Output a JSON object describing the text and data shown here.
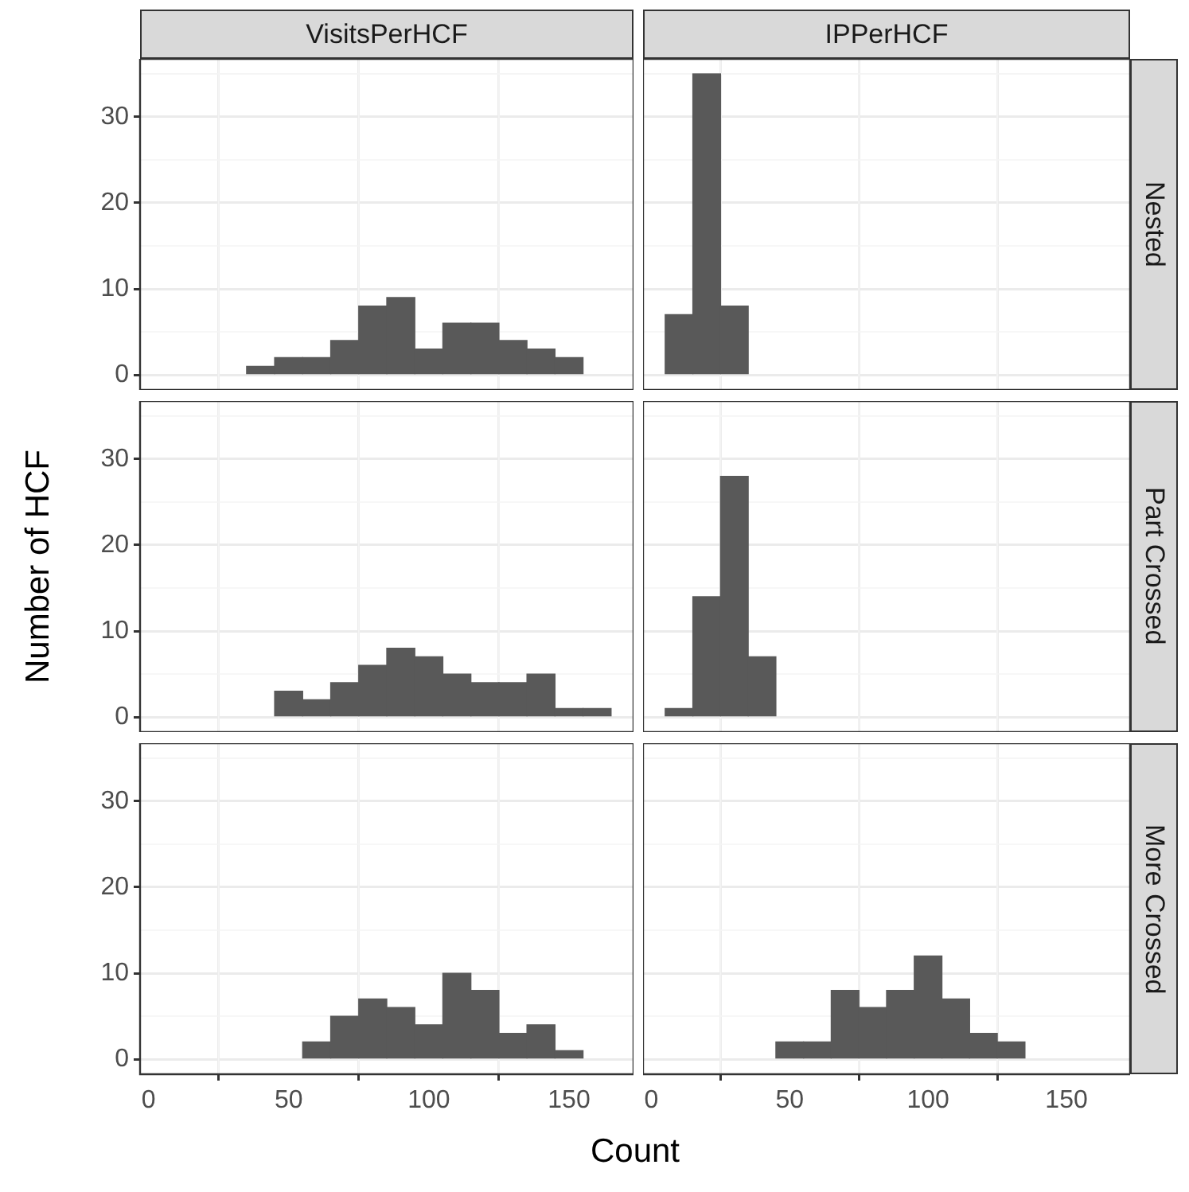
{
  "chart_data": [
    {
      "type": "histogram",
      "title": "VisitsPerHCF",
      "bins": [
        35,
        45,
        55,
        65,
        75,
        85,
        95,
        105,
        115,
        125,
        135,
        145,
        155
      ],
      "values": [
        1,
        2,
        2,
        4,
        8,
        9,
        3,
        6,
        6,
        4,
        3,
        2
      ],
      "color": "#595959",
      "xlim": [
        -3,
        173
      ],
      "xticks": [
        0,
        50,
        100,
        150
      ],
      "ylim": [
        -1.75,
        36.75
      ],
      "yticks": [
        0,
        10,
        20,
        30
      ],
      "grid": true,
      "tick_labels": "y"
    },
    {
      "type": "histogram",
      "title": "IPPerHCF",
      "subtitle": "Nested",
      "bins": [
        5,
        15,
        25,
        35
      ],
      "values": [
        7,
        35,
        8
      ],
      "color": "#595959",
      "xlim": [
        -3,
        173
      ],
      "xticks": [
        0,
        50,
        100,
        150
      ],
      "ylim": [
        -1.75,
        36.75
      ],
      "yticks": [
        0,
        10,
        20,
        30
      ],
      "grid": true,
      "tick_labels": false
    },
    {
      "type": "histogram",
      "ylabel": "Number of HCF",
      "bins": [
        45,
        55,
        65,
        75,
        85,
        95,
        105,
        115,
        125,
        135,
        145,
        155,
        165
      ],
      "values": [
        3,
        2,
        4,
        6,
        8,
        7,
        5,
        4,
        4,
        5,
        1,
        1
      ],
      "color": "#595959",
      "xlim": [
        -3,
        173
      ],
      "xticks": [
        0,
        50,
        100,
        150
      ],
      "ylim": [
        -1.75,
        36.75
      ],
      "yticks": [
        0,
        10,
        20,
        30
      ],
      "grid": true,
      "tick_labels": "y"
    },
    {
      "type": "histogram",
      "subtitle": "Part Crossed",
      "bins": [
        5,
        15,
        25,
        35,
        45
      ],
      "values": [
        1,
        14,
        28,
        7
      ],
      "color": "#595959",
      "xlim": [
        -3,
        173
      ],
      "xticks": [
        0,
        50,
        100,
        150
      ],
      "ylim": [
        -1.75,
        36.75
      ],
      "yticks": [
        0,
        10,
        20,
        30
      ],
      "grid": true,
      "tick_labels": false
    },
    {
      "type": "histogram",
      "xlabel": "Count",
      "bins": [
        55,
        65,
        75,
        85,
        95,
        105,
        115,
        125,
        135,
        145,
        155
      ],
      "values": [
        2,
        5,
        7,
        6,
        4,
        10,
        8,
        3,
        4,
        1
      ],
      "color": "#595959",
      "xlim": [
        -3,
        173
      ],
      "xticks": [
        0,
        50,
        100,
        150
      ],
      "ylim": [
        -1.75,
        36.75
      ],
      "yticks": [
        0,
        10,
        20,
        30
      ],
      "grid": true
    },
    {
      "type": "histogram",
      "subtitle": "More Crossed",
      "bins": [
        45,
        55,
        65,
        75,
        85,
        95,
        105,
        115,
        125,
        135
      ],
      "values": [
        2,
        2,
        8,
        6,
        8,
        12,
        7,
        3,
        2
      ],
      "color": "#595959",
      "xlim": [
        -3,
        173
      ],
      "xticks": [
        0,
        50,
        100,
        150
      ],
      "ylim": [
        -1.75,
        36.75
      ],
      "yticks": [
        0,
        10,
        20,
        30
      ],
      "grid": true,
      "tick_labels": "x"
    }
  ]
}
